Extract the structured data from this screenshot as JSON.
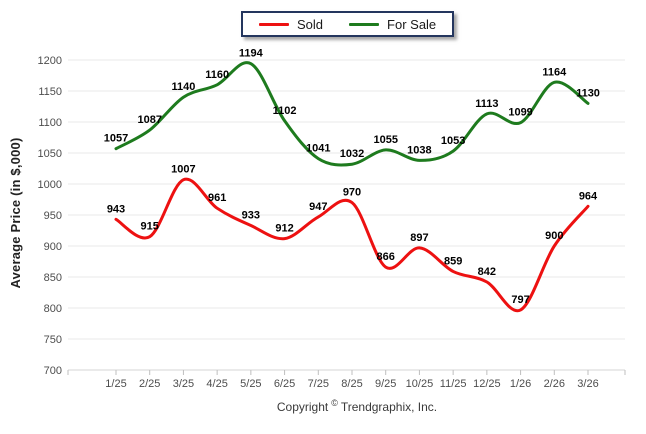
{
  "chart_data": {
    "type": "line",
    "title": "",
    "xlabel": "",
    "ylabel": "Average Price (in $,000)",
    "ylim": [
      700,
      1200
    ],
    "yticks": [
      700,
      750,
      800,
      850,
      900,
      950,
      1000,
      1050,
      1100,
      1150,
      1200
    ],
    "grid": "horizontal",
    "line_style": "smooth",
    "legend_position": "top-center",
    "categories": [
      "1/25",
      "2/25",
      "3/25",
      "4/25",
      "5/25",
      "6/25",
      "7/25",
      "8/25",
      "9/25",
      "10/25",
      "11/25",
      "12/25",
      "1/26",
      "2/26",
      "3/26"
    ],
    "series": [
      {
        "name": "Sold",
        "color": "#ed1111",
        "values": [
          943,
          915,
          1007,
          961,
          933,
          912,
          947,
          970,
          866,
          897,
          859,
          842,
          797,
          900,
          964
        ]
      },
      {
        "name": "For Sale",
        "color": "#1e7b1e",
        "values": [
          1057,
          1087,
          1140,
          1160,
          1194,
          1102,
          1041,
          1032,
          1055,
          1038,
          1053,
          1113,
          1099,
          1164,
          1130
        ]
      }
    ],
    "styles": {
      "grid_color": "#e8e8e8",
      "axis_line_color": "#d6d6d6",
      "tick_color": "#bfbfbf",
      "axis_text_color": "#4d4d4d",
      "data_label_color": "#000000",
      "legend_border_color": "#24365e"
    }
  },
  "footer": {
    "copyright_prefix": "Copyright",
    "copyright_symbol": "©",
    "copyright_rest": "Trendgraphix, Inc."
  }
}
